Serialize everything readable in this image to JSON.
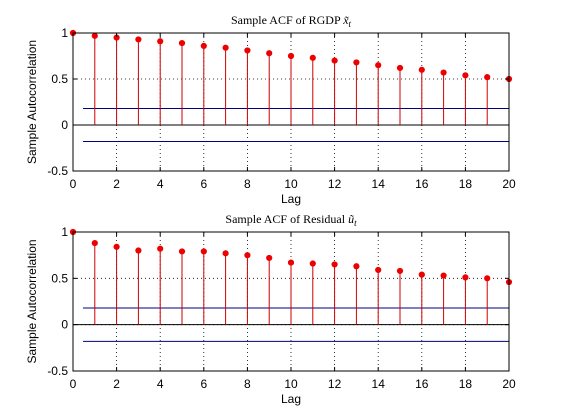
{
  "chart_data": [
    {
      "type": "stem",
      "title": "Sample ACF of RGDP x̃t",
      "title_main": "Sample ACF of RGDP ",
      "title_symbol": "x̃",
      "title_sub": "t",
      "xlabel": "Lag",
      "ylabel": "Sample Autocorrelation",
      "xlim": [
        0,
        20
      ],
      "ylim": [
        -0.5,
        1
      ],
      "x_ticks": [
        0,
        2,
        4,
        6,
        8,
        10,
        12,
        14,
        16,
        18,
        20
      ],
      "y_ticks": [
        -0.5,
        0,
        0.5,
        1
      ],
      "y_tick_labels": [
        "-0.5",
        "0",
        "0.5",
        "1"
      ],
      "grid": "dotted",
      "confidence_bounds": [
        0.18,
        -0.18
      ],
      "x": [
        0,
        1,
        2,
        3,
        4,
        5,
        6,
        7,
        8,
        9,
        10,
        11,
        12,
        13,
        14,
        15,
        16,
        17,
        18,
        19,
        20
      ],
      "values": [
        1.0,
        0.97,
        0.95,
        0.93,
        0.91,
        0.89,
        0.86,
        0.84,
        0.81,
        0.78,
        0.75,
        0.73,
        0.7,
        0.68,
        0.65,
        0.62,
        0.6,
        0.57,
        0.54,
        0.52,
        0.5
      ]
    },
    {
      "type": "stem",
      "title": "Sample ACF of Residual ũt",
      "title_main": "Sample ACF of Residual ",
      "title_symbol": "ũ",
      "title_sub": "t",
      "xlabel": "Lag",
      "ylabel": "Sample Autocorrelation",
      "xlim": [
        0,
        20
      ],
      "ylim": [
        -0.5,
        1
      ],
      "x_ticks": [
        0,
        2,
        4,
        6,
        8,
        10,
        12,
        14,
        16,
        18,
        20
      ],
      "y_ticks": [
        -0.5,
        0,
        0.5,
        1
      ],
      "y_tick_labels": [
        "-0.5",
        "0",
        "0.5",
        "1"
      ],
      "grid": "dotted",
      "confidence_bounds": [
        0.18,
        -0.18
      ],
      "x": [
        0,
        1,
        2,
        3,
        4,
        5,
        6,
        7,
        8,
        9,
        10,
        11,
        12,
        13,
        14,
        15,
        16,
        17,
        18,
        19,
        20
      ],
      "values": [
        1.0,
        0.88,
        0.84,
        0.8,
        0.82,
        0.79,
        0.79,
        0.77,
        0.75,
        0.72,
        0.67,
        0.66,
        0.65,
        0.63,
        0.59,
        0.58,
        0.54,
        0.53,
        0.51,
        0.5,
        0.46
      ]
    }
  ],
  "colors": {
    "stem": "#cc0000",
    "marker": "#ee0000",
    "bounds": "#000080",
    "axes": "#000000",
    "background": "#ffffff"
  }
}
